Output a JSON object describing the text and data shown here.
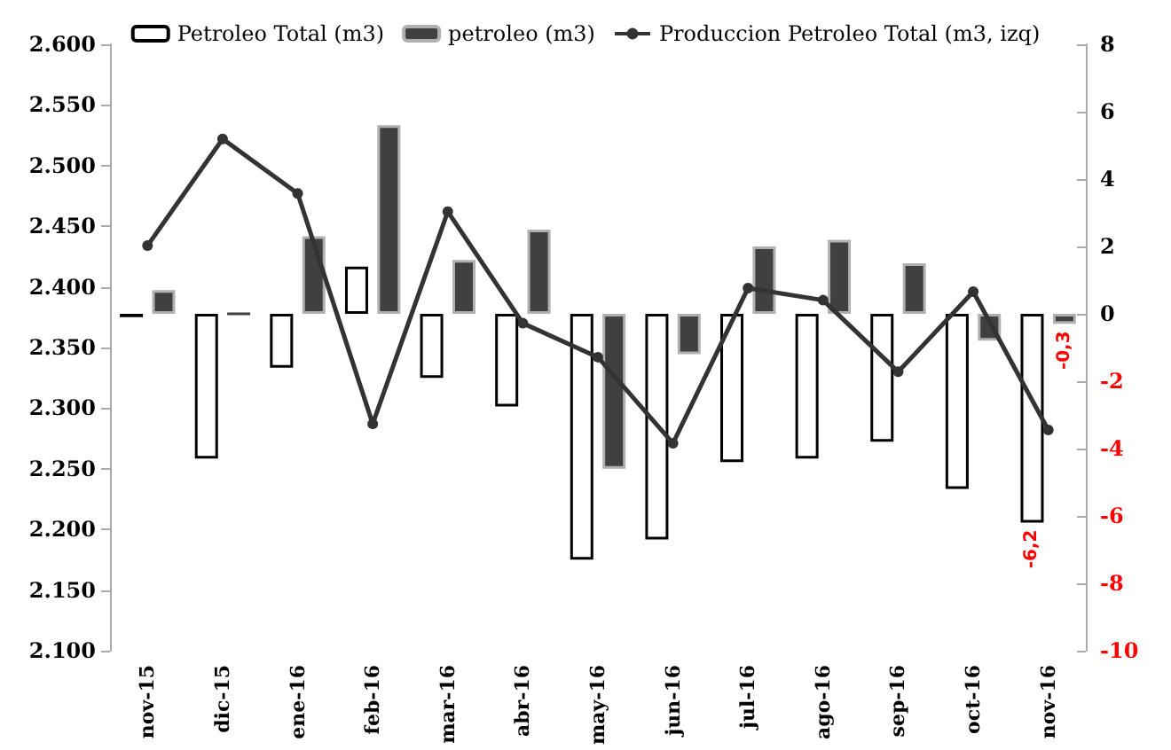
{
  "chart_data": {
    "type": "bar",
    "categories": [
      "nov-15",
      "dic-15",
      "ene-16",
      "feb-16",
      "mar-16",
      "abr-16",
      "may-16",
      "jun-16",
      "jul-16",
      "ago-16",
      "sep-16",
      "oct-16",
      "nov-16"
    ],
    "series": [
      {
        "name": "Petroleo Total (m3)",
        "axis": "y2",
        "color": "#ffffff",
        "values": [
          -0.1,
          -4.3,
          -1.6,
          1.4,
          -1.9,
          -2.75,
          -7.3,
          -6.7,
          -4.4,
          -4.3,
          -3.8,
          -5.2,
          -6.2
        ],
        "value_labels": [
          null,
          null,
          null,
          null,
          null,
          null,
          null,
          null,
          null,
          null,
          null,
          null,
          "-6,2"
        ]
      },
      {
        "name": "petroleo (m3)",
        "axis": "y2",
        "color": "#404040",
        "values": [
          0.7,
          0,
          2.3,
          5.6,
          1.6,
          2.5,
          -4.6,
          -1.2,
          2.0,
          2.2,
          1.5,
          -0.8,
          -0.3
        ],
        "value_labels": [
          null,
          null,
          null,
          null,
          null,
          null,
          null,
          null,
          null,
          null,
          null,
          null,
          "-0,3"
        ]
      },
      {
        "name": "Produccion Petroleo Total (m3, izq)",
        "type": "line",
        "color": "#333333",
        "values": [
          2434,
          2522,
          2477,
          2287,
          2462,
          2370,
          2342,
          2271,
          2399,
          2389,
          2330,
          2396,
          2282
        ]
      }
    ],
    "ylim": [
      2100,
      2600
    ],
    "yticks": [
      {
        "value": 2100,
        "label": "2.100"
      },
      {
        "value": 2150,
        "label": "2.150"
      },
      {
        "value": 2200,
        "label": "2.200"
      },
      {
        "value": 2250,
        "label": "2.250"
      },
      {
        "value": 2300,
        "label": "2.300"
      },
      {
        "value": 2350,
        "label": "2.350"
      },
      {
        "value": 2400,
        "label": "2.400"
      },
      {
        "value": 2450,
        "label": "2.450"
      },
      {
        "value": 2500,
        "label": "2.500"
      },
      {
        "value": 2550,
        "label": "2.550"
      },
      {
        "value": 2600,
        "label": "2.600"
      }
    ],
    "y2lim": [
      -10,
      8
    ],
    "y2ticks": [
      -10,
      -8,
      -6,
      -4,
      -2,
      0,
      2,
      4,
      6,
      8
    ],
    "grid": false,
    "legend": "top",
    "marker": "circle",
    "line_style": "solid"
  }
}
